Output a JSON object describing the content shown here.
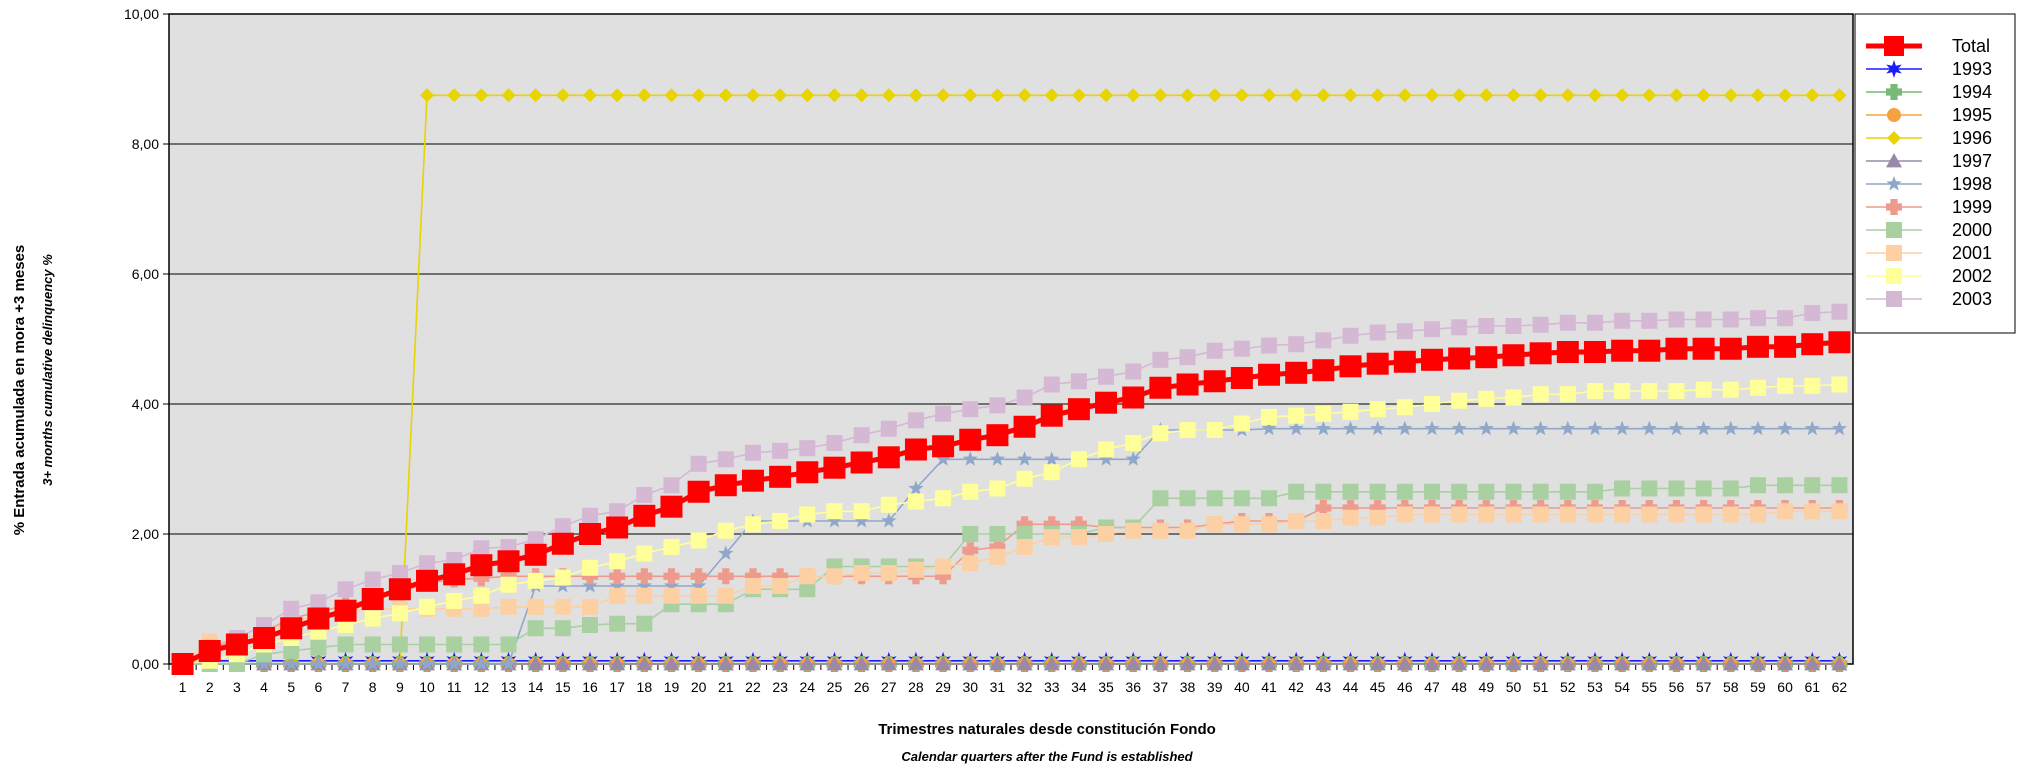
{
  "chart_data": {
    "type": "line",
    "ylabel": "% Entrada acumulada en mora +3 meses",
    "ylabel_secondary": "3+ months cumulative delinquency %",
    "xlabel": "Trimestres naturales desde constitución Fondo",
    "xlabel_secondary": "Calendar quarters after the Fund is established",
    "ylim": [
      0,
      10
    ],
    "y_ticks": [
      "0,00",
      "2,00",
      "4,00",
      "6,00",
      "8,00",
      "10,00"
    ],
    "y_tick_values": [
      0,
      2,
      4,
      6,
      8,
      10
    ],
    "x": [
      1,
      2,
      3,
      4,
      5,
      6,
      7,
      8,
      9,
      10,
      11,
      12,
      13,
      14,
      15,
      16,
      17,
      18,
      19,
      20,
      21,
      22,
      23,
      24,
      25,
      26,
      27,
      28,
      29,
      30,
      31,
      32,
      33,
      34,
      35,
      36,
      37,
      38,
      39,
      40,
      41,
      42,
      43,
      44,
      45,
      46,
      47,
      48,
      49,
      50,
      51,
      52,
      53,
      54,
      55,
      56,
      57,
      58,
      59,
      60,
      61,
      62
    ],
    "grid": "horizontal",
    "legend_position": "right",
    "background": "#e0e0e0",
    "series": [
      {
        "name": "1993",
        "color": "#1a1aff",
        "marker": "star6",
        "values": [
          0,
          0.05,
          0.05,
          0.05,
          0.05,
          0.05,
          0.05,
          0.05,
          0.05,
          0.05,
          0.05,
          0.05,
          0.05,
          0.05,
          0.05,
          0.05,
          0.05,
          0.05,
          0.05,
          0.05,
          0.05,
          0.05,
          0.05,
          0.05,
          0.05,
          0.05,
          0.05,
          0.05,
          0.05,
          0.05,
          0.05,
          0.05,
          0.05,
          0.05,
          0.05,
          0.05,
          0.05,
          0.05,
          0.05,
          0.05,
          0.05,
          0.05,
          0.05,
          0.05,
          0.05,
          0.05,
          0.05,
          0.05,
          0.05,
          0.05,
          0.05,
          0.05,
          0.05,
          0.05,
          0.05,
          0.05,
          0.05,
          0.05,
          0.05,
          0.05,
          0.05,
          0.05
        ]
      },
      {
        "name": "1994",
        "color": "#77b977",
        "marker": "plus",
        "values": [
          0,
          0,
          0,
          0,
          0,
          0,
          0,
          0,
          0,
          0,
          0,
          0,
          0,
          0,
          0,
          0,
          0,
          0,
          0,
          0,
          0,
          0,
          0,
          0,
          0,
          0,
          0,
          0,
          0,
          0,
          0,
          0,
          0,
          0,
          0,
          0,
          0,
          0,
          0,
          0,
          0,
          0,
          0,
          0,
          0,
          0,
          0,
          0,
          0,
          0,
          0,
          0,
          0,
          0,
          0,
          0,
          0,
          0,
          0,
          0,
          0,
          0
        ]
      },
      {
        "name": "1995",
        "color": "#f5a243",
        "marker": "circle",
        "values": [
          0,
          0,
          0,
          0,
          0,
          0,
          0,
          0,
          0,
          0,
          0,
          0,
          0,
          0,
          0,
          0,
          0,
          0,
          0,
          0,
          0,
          0,
          0,
          0,
          0,
          0,
          0,
          0,
          0,
          0,
          0,
          0,
          0,
          0,
          0,
          0,
          0,
          0,
          0,
          0,
          0,
          0,
          0,
          0,
          0,
          0,
          0,
          0,
          0,
          0,
          0,
          0,
          0,
          0,
          0,
          0,
          0,
          0,
          0,
          0,
          0,
          0
        ]
      },
      {
        "name": "1996",
        "color": "#e8d400",
        "marker": "diamond",
        "values": [
          0,
          0,
          0,
          0,
          0,
          0,
          0,
          0,
          0,
          8.75,
          8.75,
          8.75,
          8.75,
          8.75,
          8.75,
          8.75,
          8.75,
          8.75,
          8.75,
          8.75,
          8.75,
          8.75,
          8.75,
          8.75,
          8.75,
          8.75,
          8.75,
          8.75,
          8.75,
          8.75,
          8.75,
          8.75,
          8.75,
          8.75,
          8.75,
          8.75,
          8.75,
          8.75,
          8.75,
          8.75,
          8.75,
          8.75,
          8.75,
          8.75,
          8.75,
          8.75,
          8.75,
          8.75,
          8.75,
          8.75,
          8.75,
          8.75,
          8.75,
          8.75,
          8.75,
          8.75,
          8.75,
          8.75,
          8.75,
          8.75,
          8.75,
          8.75
        ]
      },
      {
        "name": "1997",
        "color": "#9a8aa8",
        "marker": "triangle",
        "values": [
          0,
          0,
          0,
          0,
          0,
          0,
          0,
          0,
          0,
          0,
          0,
          0,
          0,
          0,
          0,
          0,
          0,
          0,
          0,
          0,
          0,
          0,
          0,
          0,
          0,
          0,
          0,
          0,
          0,
          0,
          0,
          0,
          0,
          0,
          0,
          0,
          0,
          0,
          0,
          0,
          0,
          0,
          0,
          0,
          0,
          0,
          0,
          0,
          0,
          0,
          0,
          0,
          0,
          0,
          0,
          0,
          0,
          0,
          0,
          0,
          0,
          0
        ]
      },
      {
        "name": "1998",
        "color": "#8fa7c9",
        "marker": "star5",
        "values": [
          0,
          0,
          0,
          0,
          0,
          0,
          0,
          0,
          0,
          0,
          0,
          0,
          0,
          1.2,
          1.2,
          1.2,
          1.2,
          1.2,
          1.2,
          1.2,
          1.7,
          2.2,
          2.2,
          2.2,
          2.2,
          2.2,
          2.2,
          2.7,
          3.15,
          3.15,
          3.15,
          3.15,
          3.15,
          3.15,
          3.15,
          3.15,
          3.6,
          3.6,
          3.6,
          3.6,
          3.62,
          3.62,
          3.62,
          3.62,
          3.62,
          3.62,
          3.62,
          3.62,
          3.62,
          3.62,
          3.62,
          3.62,
          3.62,
          3.62,
          3.62,
          3.62,
          3.62,
          3.62,
          3.62,
          3.62,
          3.62,
          3.62
        ]
      },
      {
        "name": "1999",
        "color": "#ee9a8c",
        "marker": "plus",
        "values": [
          0,
          0.25,
          0.35,
          0.5,
          0.7,
          0.8,
          0.9,
          1.0,
          1.1,
          1.25,
          1.3,
          1.32,
          1.35,
          1.35,
          1.35,
          1.35,
          1.35,
          1.35,
          1.35,
          1.35,
          1.35,
          1.35,
          1.35,
          1.35,
          1.35,
          1.35,
          1.35,
          1.35,
          1.35,
          1.75,
          1.8,
          2.15,
          2.15,
          2.15,
          2.1,
          2.1,
          2.1,
          2.1,
          2.15,
          2.2,
          2.2,
          2.2,
          2.4,
          2.4,
          2.4,
          2.4,
          2.4,
          2.4,
          2.4,
          2.4,
          2.4,
          2.4,
          2.4,
          2.4,
          2.4,
          2.4,
          2.4,
          2.4,
          2.4,
          2.4,
          2.4,
          2.4
        ]
      },
      {
        "name": "2000",
        "color": "#a8d0a0",
        "marker": "square",
        "values": [
          0,
          0,
          0,
          0.15,
          0.2,
          0.25,
          0.3,
          0.3,
          0.3,
          0.3,
          0.3,
          0.3,
          0.3,
          0.55,
          0.55,
          0.6,
          0.62,
          0.62,
          0.92,
          0.92,
          0.92,
          1.15,
          1.15,
          1.15,
          1.5,
          1.5,
          1.5,
          1.5,
          1.5,
          2.0,
          2.0,
          2.0,
          2.0,
          2.0,
          2.1,
          2.1,
          2.55,
          2.55,
          2.55,
          2.55,
          2.55,
          2.65,
          2.65,
          2.65,
          2.65,
          2.65,
          2.65,
          2.65,
          2.65,
          2.65,
          2.65,
          2.65,
          2.65,
          2.7,
          2.7,
          2.7,
          2.7,
          2.7,
          2.75,
          2.75,
          2.75,
          2.75
        ]
      },
      {
        "name": "2001",
        "color": "#fcd0a2",
        "marker": "square",
        "values": [
          0,
          0.35,
          0.35,
          0.5,
          0.65,
          0.75,
          0.8,
          0.85,
          0.85,
          0.85,
          0.85,
          0.85,
          0.88,
          0.88,
          0.88,
          0.88,
          1.05,
          1.05,
          1.05,
          1.05,
          1.05,
          1.2,
          1.2,
          1.35,
          1.35,
          1.4,
          1.4,
          1.45,
          1.5,
          1.55,
          1.65,
          1.8,
          1.95,
          1.95,
          2.0,
          2.05,
          2.05,
          2.05,
          2.15,
          2.15,
          2.15,
          2.2,
          2.2,
          2.25,
          2.25,
          2.3,
          2.3,
          2.3,
          2.3,
          2.3,
          2.3,
          2.3,
          2.3,
          2.3,
          2.3,
          2.3,
          2.3,
          2.3,
          2.3,
          2.35,
          2.35,
          2.35
        ]
      },
      {
        "name": "2002",
        "color": "#ffff99",
        "marker": "square",
        "values": [
          0,
          0.05,
          0.15,
          0.3,
          0.4,
          0.5,
          0.6,
          0.7,
          0.78,
          0.88,
          0.97,
          1.05,
          1.22,
          1.28,
          1.33,
          1.48,
          1.58,
          1.7,
          1.8,
          1.9,
          2.05,
          2.15,
          2.2,
          2.3,
          2.35,
          2.35,
          2.45,
          2.5,
          2.55,
          2.65,
          2.7,
          2.85,
          2.95,
          3.15,
          3.3,
          3.4,
          3.55,
          3.6,
          3.6,
          3.7,
          3.8,
          3.82,
          3.85,
          3.88,
          3.92,
          3.95,
          4.0,
          4.05,
          4.08,
          4.1,
          4.15,
          4.15,
          4.2,
          4.2,
          4.2,
          4.2,
          4.22,
          4.22,
          4.25,
          4.28,
          4.28,
          4.3
        ]
      },
      {
        "name": "2003",
        "color": "#d4b8d4",
        "marker": "square",
        "values": [
          0,
          0.25,
          0.4,
          0.6,
          0.85,
          0.95,
          1.15,
          1.3,
          1.4,
          1.55,
          1.6,
          1.78,
          1.8,
          1.92,
          2.12,
          2.28,
          2.35,
          2.6,
          2.75,
          3.08,
          3.15,
          3.25,
          3.28,
          3.32,
          3.4,
          3.52,
          3.62,
          3.75,
          3.85,
          3.92,
          3.98,
          4.1,
          4.3,
          4.35,
          4.42,
          4.5,
          4.68,
          4.72,
          4.82,
          4.85,
          4.9,
          4.92,
          4.98,
          5.05,
          5.1,
          5.12,
          5.15,
          5.18,
          5.2,
          5.2,
          5.22,
          5.25,
          5.25,
          5.28,
          5.28,
          5.3,
          5.3,
          5.3,
          5.32,
          5.32,
          5.4,
          5.42
        ]
      },
      {
        "name": "Total",
        "color": "#ff0000",
        "marker": "square",
        "bold": true,
        "values": [
          0,
          0.2,
          0.3,
          0.4,
          0.55,
          0.7,
          0.82,
          1.0,
          1.15,
          1.28,
          1.38,
          1.52,
          1.58,
          1.68,
          1.85,
          2.0,
          2.1,
          2.28,
          2.42,
          2.65,
          2.75,
          2.82,
          2.88,
          2.95,
          3.02,
          3.1,
          3.18,
          3.3,
          3.35,
          3.45,
          3.52,
          3.65,
          3.82,
          3.92,
          4.02,
          4.1,
          4.25,
          4.3,
          4.35,
          4.4,
          4.45,
          4.48,
          4.52,
          4.58,
          4.62,
          4.65,
          4.68,
          4.7,
          4.72,
          4.75,
          4.78,
          4.8,
          4.8,
          4.82,
          4.82,
          4.85,
          4.85,
          4.85,
          4.88,
          4.88,
          4.92,
          4.95
        ]
      }
    ],
    "legend_order": [
      "Total",
      "1993",
      "1994",
      "1995",
      "1996",
      "1997",
      "1998",
      "1999",
      "2000",
      "2001",
      "2002",
      "2003"
    ]
  }
}
